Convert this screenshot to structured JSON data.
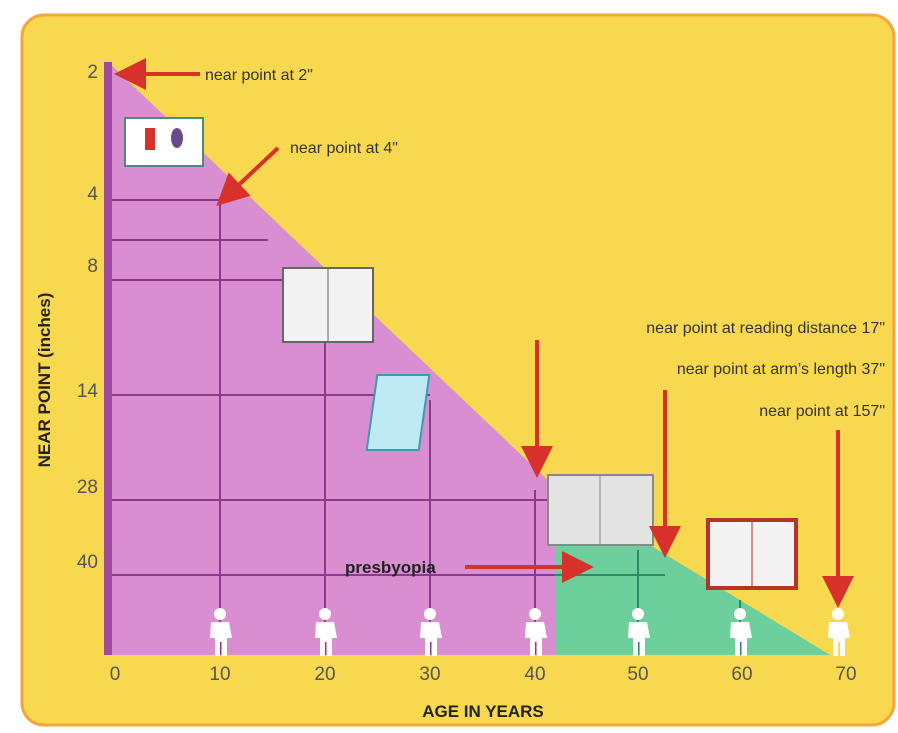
{
  "y_axis": {
    "title": "NEAR POINT (inches)",
    "ticks": [
      2,
      4,
      8,
      14,
      28,
      40
    ]
  },
  "x_axis": {
    "title": "AGE IN YEARS",
    "ticks": [
      0,
      10,
      20,
      30,
      40,
      50,
      60,
      70
    ]
  },
  "annotations": [
    "near point at 2\"",
    "near point at 4\"",
    "near point at reading distance 17\"",
    "near point at arm’s length 37\"",
    "near point at 157\""
  ],
  "label": "presbyopia"
}
